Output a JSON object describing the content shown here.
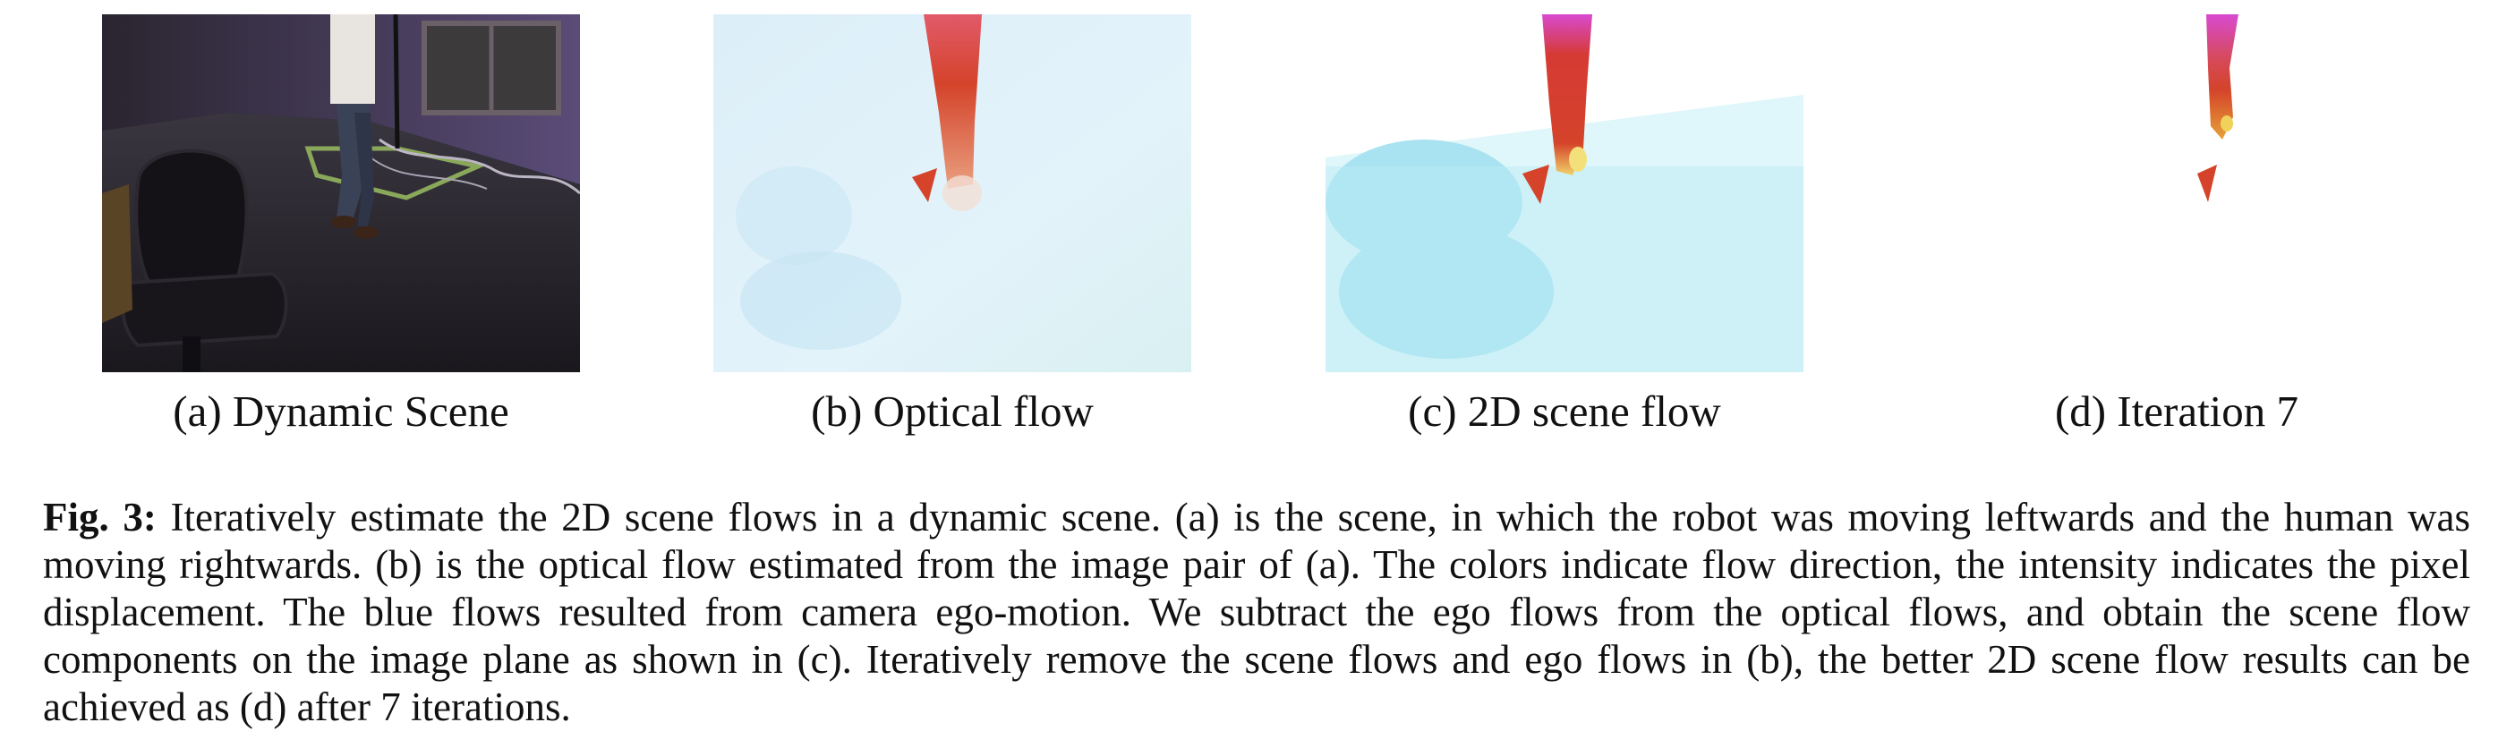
{
  "figure": {
    "label": "Fig. 3:",
    "caption": "Iteratively estimate the 2D scene flows in a dynamic scene. (a) is the scene, in which the robot was moving leftwards and the human was moving rightwards. (b) is the optical flow estimated from the image pair of (a). The colors indicate flow direction, the intensity indicates the pixel displacement. The blue flows resulted from camera ego-motion. We subtract the ego flows from the optical flows, and obtain the scene flow components on the image plane as shown in (c). Iteratively remove the scene flows and ego flows in (b), the better 2D scene flow results can be achieved as (d) after 7 iterations.",
    "subfigures": [
      {
        "id": "a",
        "caption": "(a) Dynamic Scene"
      },
      {
        "id": "b",
        "caption": "(b) Optical flow"
      },
      {
        "id": "c",
        "caption": "(c) 2D scene flow"
      },
      {
        "id": "d",
        "caption": "(d) Iteration 7"
      }
    ]
  },
  "colors": {
    "scene_dark": "#1f1c22",
    "scene_wall": "#4b3f63",
    "flow_background": "#d8eef7",
    "ego_flow_cyan": "#a9e3f1",
    "human_flow_red": "#d4432a",
    "human_flow_magenta": "#d84ad0"
  }
}
